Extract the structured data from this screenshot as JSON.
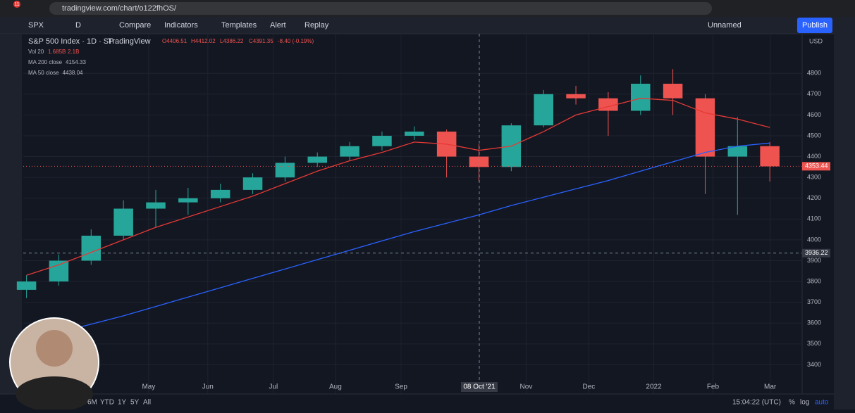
{
  "browser": {
    "url": "tradingview.com/chart/o122fhOS/",
    "badge": "11"
  },
  "toolbar": {
    "symbol": "SPX",
    "interval": "D",
    "items": [
      "Compare",
      "Indicators",
      "Templates",
      "Alert",
      "Replay"
    ],
    "layout": "Unnamed",
    "publish": "Publish"
  },
  "bottom_bar": {
    "ranges": [
      "6M",
      "YTD",
      "1Y",
      "5Y",
      "All"
    ],
    "clock": "15:04:22 (UTC)",
    "options": [
      "%",
      "log",
      "auto"
    ]
  },
  "chart_data": {
    "type": "candlestick",
    "title": "S&P 500 Index · 1D · SP",
    "source": "TradingView",
    "ohlc_legend": {
      "open": "O4406.51",
      "high": "H4412.02",
      "low": "L4386.22",
      "close": "C4391.35",
      "change": "-8.40 (-0.19%)"
    },
    "volume_legend": {
      "name": "Vol 20",
      "values": [
        "1.685B",
        "2.1B"
      ]
    },
    "x": [
      null,
      null,
      null,
      null,
      null,
      null,
      null,
      null,
      null,
      null,
      null,
      null,
      null,
      null,
      null,
      null,
      null,
      null,
      null,
      null,
      null,
      null,
      null,
      null
    ],
    "open": [
      3760,
      3800,
      3900,
      4020,
      4150,
      4180,
      4200,
      4240,
      4300,
      4370,
      4400,
      4450,
      4500,
      4520,
      4400,
      4350,
      4550,
      4700,
      4680,
      4620,
      4750,
      4680,
      4400,
      4450
    ],
    "high": [
      3830,
      3930,
      4050,
      4190,
      4240,
      4250,
      4270,
      4320,
      4400,
      4420,
      4470,
      4520,
      4545,
      4530,
      4460,
      4560,
      4720,
      4740,
      4710,
      4790,
      4820,
      4700,
      4590,
      4470
    ],
    "low": [
      3720,
      3780,
      3880,
      4000,
      4060,
      4120,
      4180,
      4220,
      4280,
      4350,
      4380,
      4430,
      4480,
      4300,
      4280,
      4330,
      4540,
      4650,
      4500,
      4600,
      4600,
      4220,
      4120,
      4280
    ],
    "close": [
      3800,
      3900,
      4020,
      4150,
      4180,
      4200,
      4240,
      4300,
      4370,
      4400,
      4450,
      4500,
      4520,
      4400,
      4350,
      4550,
      4700,
      4680,
      4620,
      4750,
      4680,
      4400,
      4450,
      4353
    ],
    "up_color": "#26a69a",
    "down_color": "#ef5350",
    "series": [
      {
        "name": "MA 200 close",
        "last": "4154.33",
        "color": "#2962ff",
        "values": [
          3520,
          3555,
          3595,
          3635,
          3680,
          3725,
          3770,
          3815,
          3860,
          3905,
          3950,
          3995,
          4040,
          4080,
          4120,
          4165,
          4205,
          4245,
          4285,
          4330,
          4375,
          4420,
          4450,
          4465
        ]
      },
      {
        "name": "MA 50 close",
        "last": "4438.04",
        "color": "#e53935",
        "values": [
          3830,
          3880,
          3940,
          4000,
          4060,
          4110,
          4160,
          4210,
          4270,
          4330,
          4380,
          4420,
          4470,
          4460,
          4430,
          4450,
          4520,
          4600,
          4640,
          4680,
          4670,
          4610,
          4580,
          4540
        ]
      }
    ],
    "xlim": [
      -0.1,
      24
    ],
    "xticks": [
      {
        "value": 3.78,
        "label": "May"
      },
      {
        "value": 5.61,
        "label": "Jun"
      },
      {
        "value": 7.64,
        "label": "Jul"
      },
      {
        "value": 9.56,
        "label": "Aug"
      },
      {
        "value": 11.59,
        "label": "Sep"
      },
      {
        "value": 15.46,
        "label": "Nov"
      },
      {
        "value": 17.4,
        "label": "Dec"
      },
      {
        "value": 19.41,
        "label": "2022"
      },
      {
        "value": 21.24,
        "label": "Feb"
      },
      {
        "value": 23.01,
        "label": "Mar"
      }
    ],
    "ylim": [
      3300,
      4990
    ],
    "yticks": [
      3400,
      3500,
      3600,
      3700,
      3800,
      3900,
      4000,
      4100,
      4200,
      4300,
      4400,
      4500,
      4600,
      4700,
      4800
    ],
    "currency": "USD",
    "last_price": {
      "value": 4353.44,
      "label": "4353.44"
    },
    "crosshair": {
      "price": 3936.22,
      "date": "08 Oct '21"
    }
  }
}
